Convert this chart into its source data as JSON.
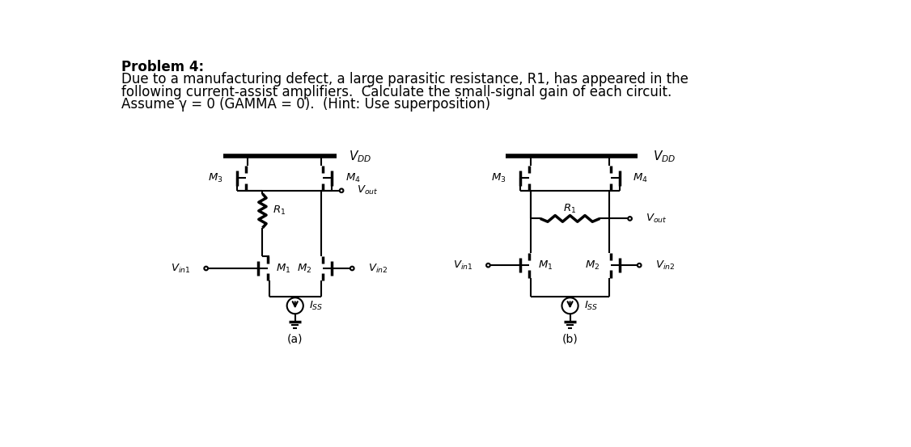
{
  "title_bold": "Problem 4:",
  "body_line1": "Due to a manufacturing defect, a large parasitic resistance, R1, has appeared in the",
  "body_line2": "following current-assist amplifiers.  Calculate the small-signal gain of each circuit.",
  "body_line3": "Assume γ = 0 (GAMMA = 0).  (Hint: Use superposition)",
  "label_a": "(a)",
  "label_b": "(b)",
  "bg_color": "#ffffff",
  "text_color": "#000000"
}
